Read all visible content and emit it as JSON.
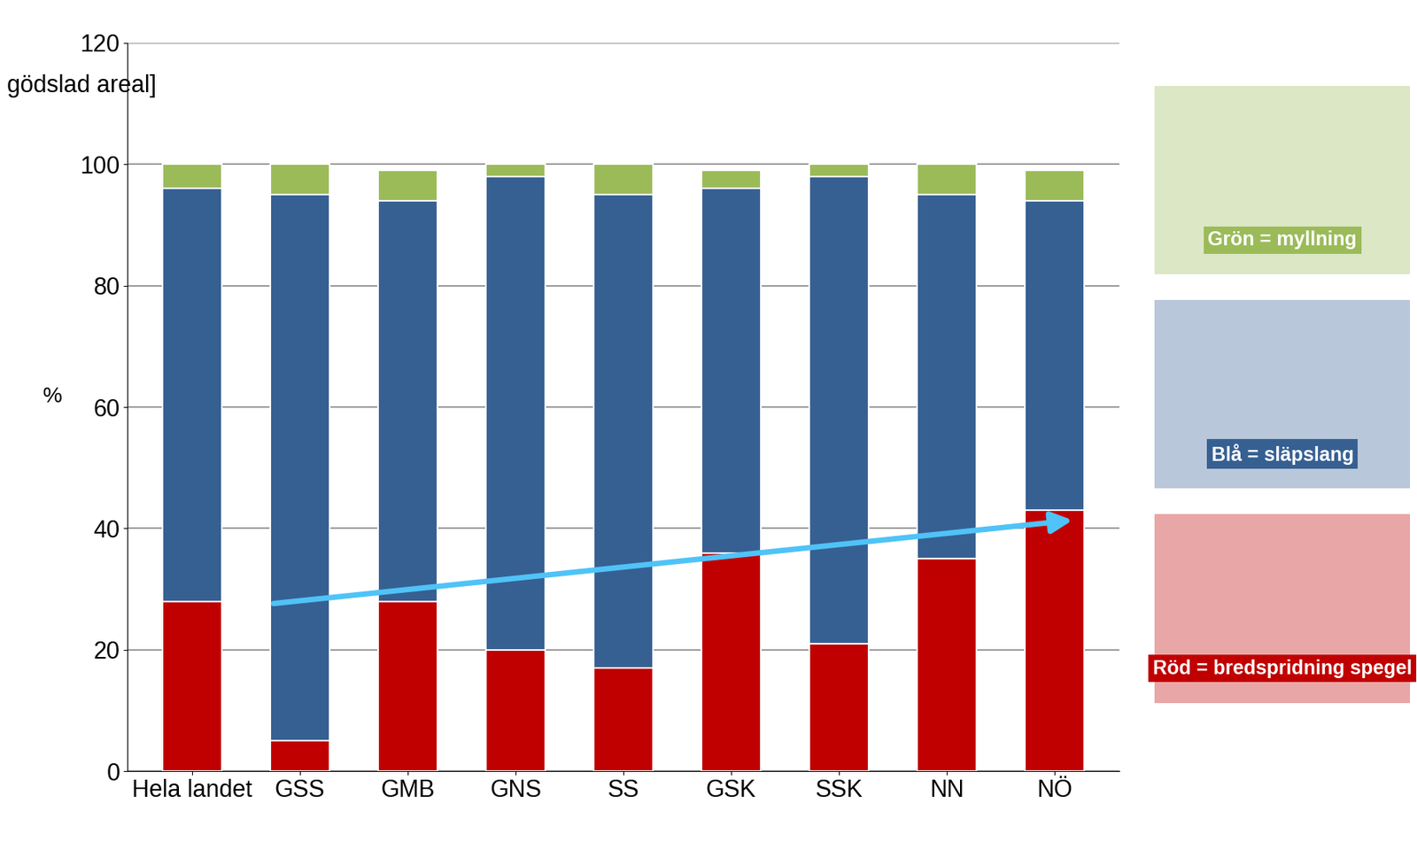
{
  "chart_data": {
    "type": "bar",
    "stacked": true,
    "grid": true,
    "y_label": "%",
    "annotations": [
      "gödslad areal]"
    ],
    "categories": [
      "Hela landet",
      "GSS",
      "GMB",
      "GNS",
      "SS",
      "GSK",
      "SSK",
      "NN",
      "NÖ"
    ],
    "series": [
      {
        "name": "Röd = bredspridning spegel",
        "color": "#C00000",
        "values": [
          28,
          5,
          28,
          20,
          17,
          36,
          21,
          35,
          43
        ]
      },
      {
        "name": "Blå = släpslang",
        "color": "#366092",
        "values": [
          68,
          90,
          66,
          78,
          78,
          60,
          77,
          60,
          51
        ]
      },
      {
        "name": "Grön = myllning",
        "color": "#9BBB59",
        "values": [
          4,
          5,
          5,
          2,
          5,
          3,
          2,
          5,
          5
        ]
      }
    ],
    "ylim": [
      0,
      120
    ],
    "yticks": [
      0,
      20,
      40,
      60,
      80,
      100,
      120
    ]
  }
}
